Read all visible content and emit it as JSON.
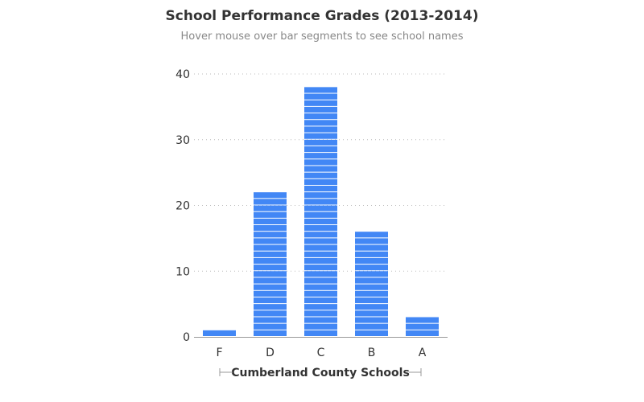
{
  "chart_data": {
    "type": "bar",
    "title": "School Performance Grades (2013-2014)",
    "subtitle": "Hover mouse over bar segments to see school names",
    "xlabel": "Cumberland County Schools",
    "ylabel": "",
    "categories": [
      "F",
      "D",
      "C",
      "B",
      "A"
    ],
    "values": [
      1,
      22,
      38,
      16,
      3
    ],
    "ylim": [
      0,
      40
    ],
    "yticks": [
      0,
      10,
      20,
      30,
      40
    ],
    "grid": true,
    "bar_color": "#4287f5",
    "stacked_segments": "one segment per school"
  }
}
